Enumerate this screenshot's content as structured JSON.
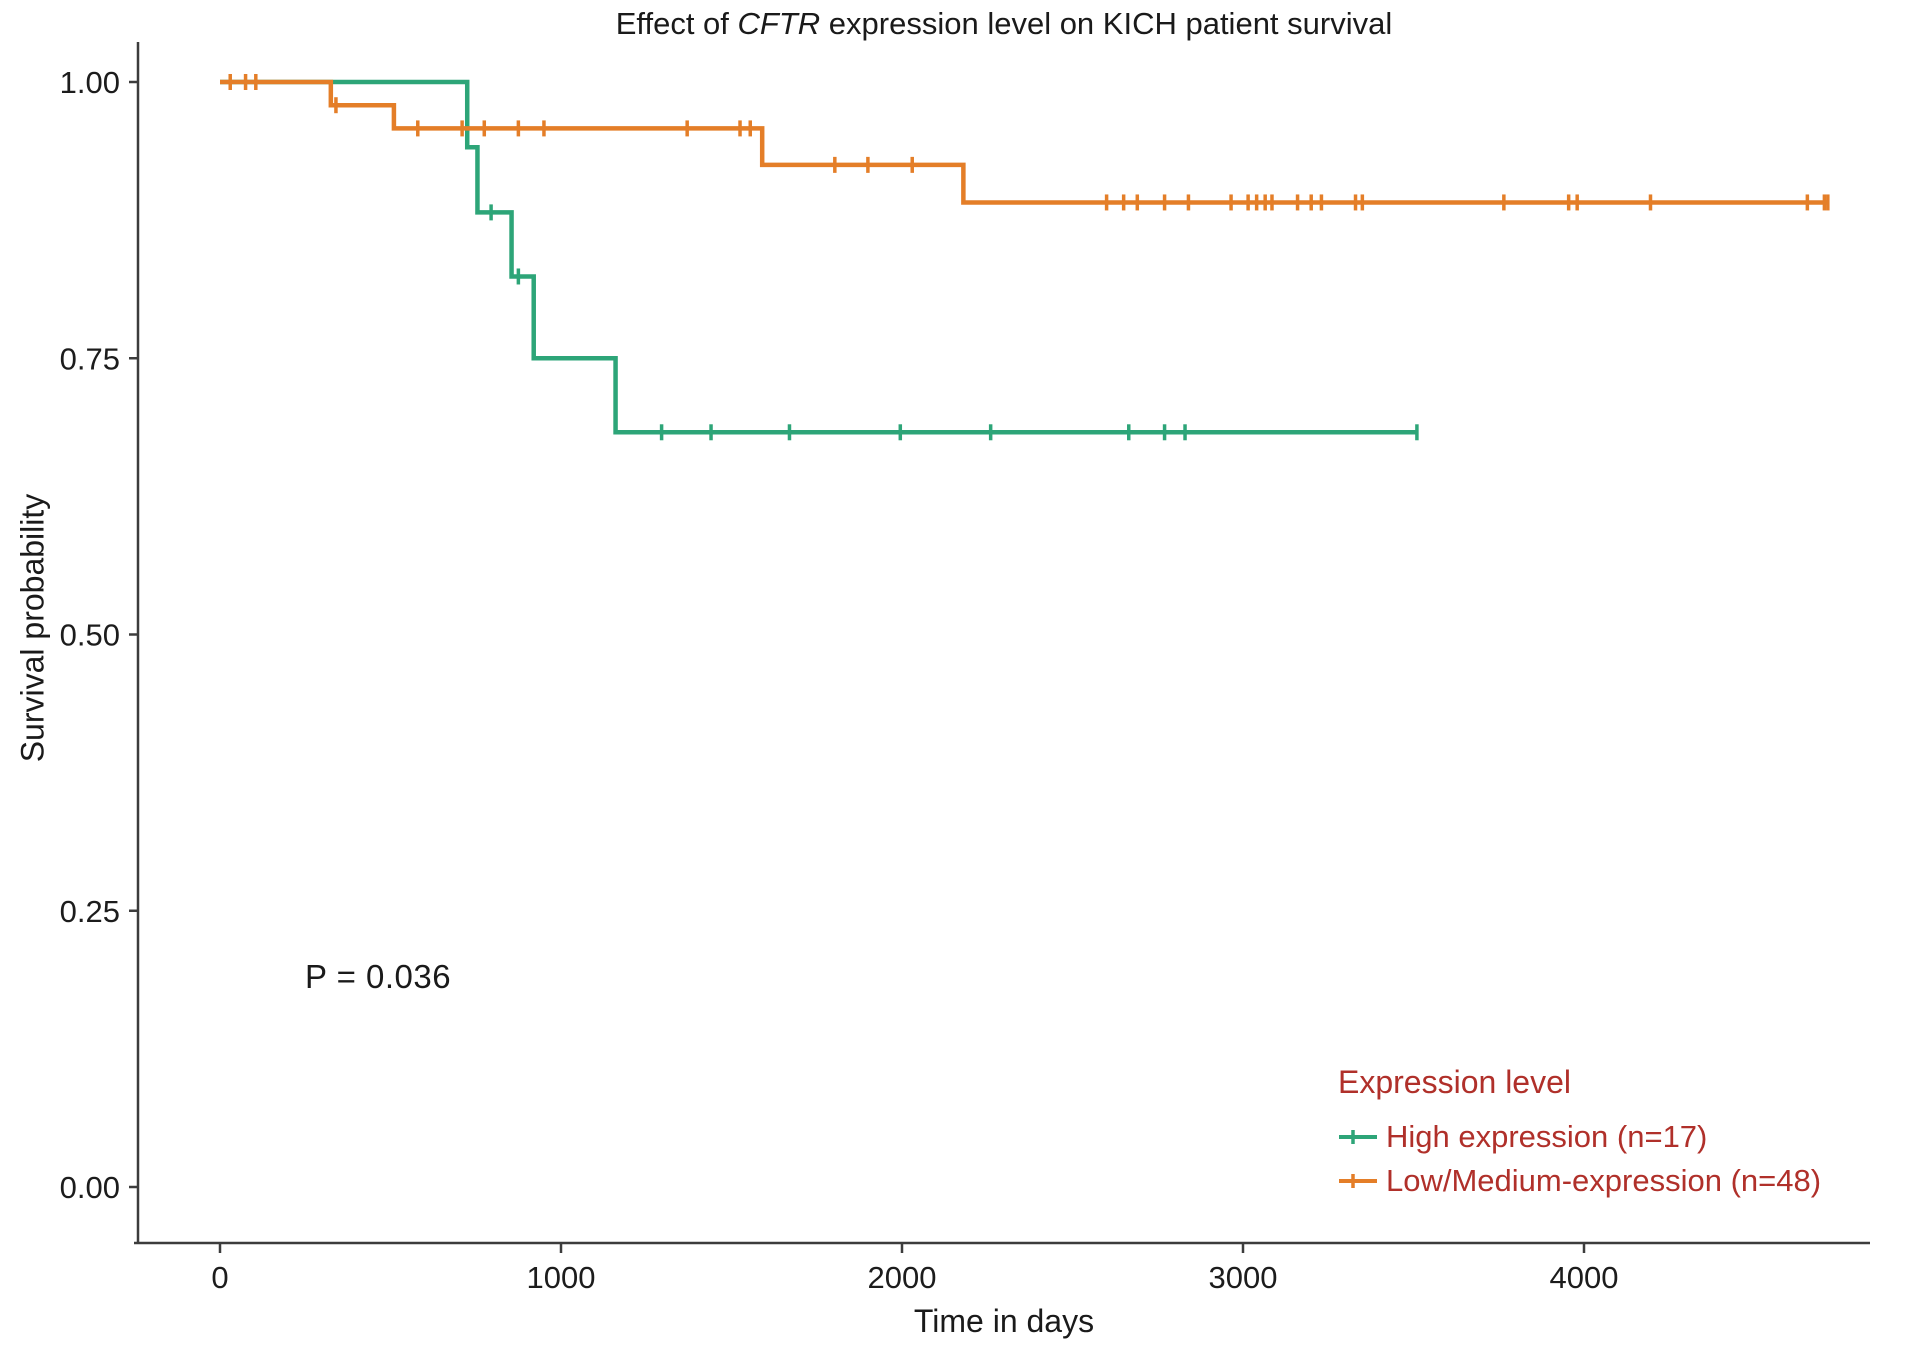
{
  "title": {
    "prefix": "Effect of ",
    "gene": "CFTR",
    "suffix": " expression level on KICH patient survival"
  },
  "axes": {
    "x_label": "Time in days",
    "y_label": "Survival probability"
  },
  "annotation": {
    "p_value": "P = 0.036"
  },
  "legend": {
    "title": "Expression level",
    "text_color": "#B0302A",
    "items": [
      {
        "label": "High expression (n=17)",
        "color": "#2DA578"
      },
      {
        "label": "Low/Medium-expression (n=48)",
        "color": "#E47E28"
      }
    ]
  },
  "chart_data": {
    "type": "line",
    "subtype": "kaplan-meier-step",
    "title": "Effect of CFTR expression level on KICH patient survival",
    "xlabel": "Time in days",
    "ylabel": "Survival probability",
    "xlim": [
      0,
      4850
    ],
    "ylim": [
      0,
      1.0
    ],
    "grid": false,
    "legend_position": "bottom-right-inside",
    "x_ticks": [
      {
        "v": 0,
        "label": "0"
      },
      {
        "v": 1000,
        "label": "1000"
      },
      {
        "v": 2000,
        "label": "2000"
      },
      {
        "v": 3000,
        "label": "3000"
      },
      {
        "v": 4000,
        "label": "4000"
      }
    ],
    "y_ticks": [
      {
        "v": 0.0,
        "label": "0.00"
      },
      {
        "v": 0.25,
        "label": "0.25"
      },
      {
        "v": 0.5,
        "label": "0.50"
      },
      {
        "v": 0.75,
        "label": "0.75"
      },
      {
        "v": 1.0,
        "label": "1.00"
      }
    ],
    "p_value_text": "P = 0.036",
    "series": [
      {
        "name": "High expression (n=17)",
        "n": 17,
        "color": "#2DA578",
        "steps": [
          [
            0,
            1.0
          ],
          [
            725,
            0.941
          ],
          [
            755,
            0.882
          ],
          [
            855,
            0.824
          ],
          [
            920,
            0.75
          ],
          [
            1160,
            0.683
          ]
        ],
        "end_time": 3510,
        "censors": [
          [
            795,
            0.882
          ],
          [
            875,
            0.824
          ],
          [
            1295,
            0.683
          ],
          [
            1440,
            0.683
          ],
          [
            1670,
            0.683
          ],
          [
            1995,
            0.683
          ],
          [
            2260,
            0.683
          ],
          [
            2665,
            0.683
          ],
          [
            2770,
            0.683
          ],
          [
            2830,
            0.683
          ],
          [
            3510,
            0.683
          ]
        ]
      },
      {
        "name": "Low/Medium-expression (n=48)",
        "n": 48,
        "color": "#E47E28",
        "steps": [
          [
            0,
            1.0
          ],
          [
            325,
            0.979
          ],
          [
            510,
            0.958
          ],
          [
            1590,
            0.925
          ],
          [
            2180,
            0.891
          ]
        ],
        "end_time": 4715,
        "censors": [
          [
            30,
            1.0
          ],
          [
            75,
            1.0
          ],
          [
            105,
            1.0
          ],
          [
            340,
            0.979
          ],
          [
            580,
            0.958
          ],
          [
            710,
            0.958
          ],
          [
            775,
            0.958
          ],
          [
            875,
            0.958
          ],
          [
            950,
            0.958
          ],
          [
            1370,
            0.958
          ],
          [
            1525,
            0.958
          ],
          [
            1555,
            0.958
          ],
          [
            1803,
            0.925
          ],
          [
            1900,
            0.925
          ],
          [
            2030,
            0.925
          ],
          [
            2600,
            0.891
          ],
          [
            2650,
            0.891
          ],
          [
            2690,
            0.891
          ],
          [
            2770,
            0.891
          ],
          [
            2840,
            0.891
          ],
          [
            2965,
            0.891
          ],
          [
            3015,
            0.891
          ],
          [
            3040,
            0.891
          ],
          [
            3065,
            0.891
          ],
          [
            3085,
            0.891
          ],
          [
            3160,
            0.891
          ],
          [
            3200,
            0.891
          ],
          [
            3230,
            0.891
          ],
          [
            3330,
            0.891
          ],
          [
            3350,
            0.891
          ],
          [
            3765,
            0.891
          ],
          [
            3955,
            0.891
          ],
          [
            3980,
            0.891
          ],
          [
            4195,
            0.891
          ],
          [
            4655,
            0.891
          ],
          [
            4705,
            0.891
          ],
          [
            4715,
            0.891
          ]
        ]
      }
    ]
  }
}
